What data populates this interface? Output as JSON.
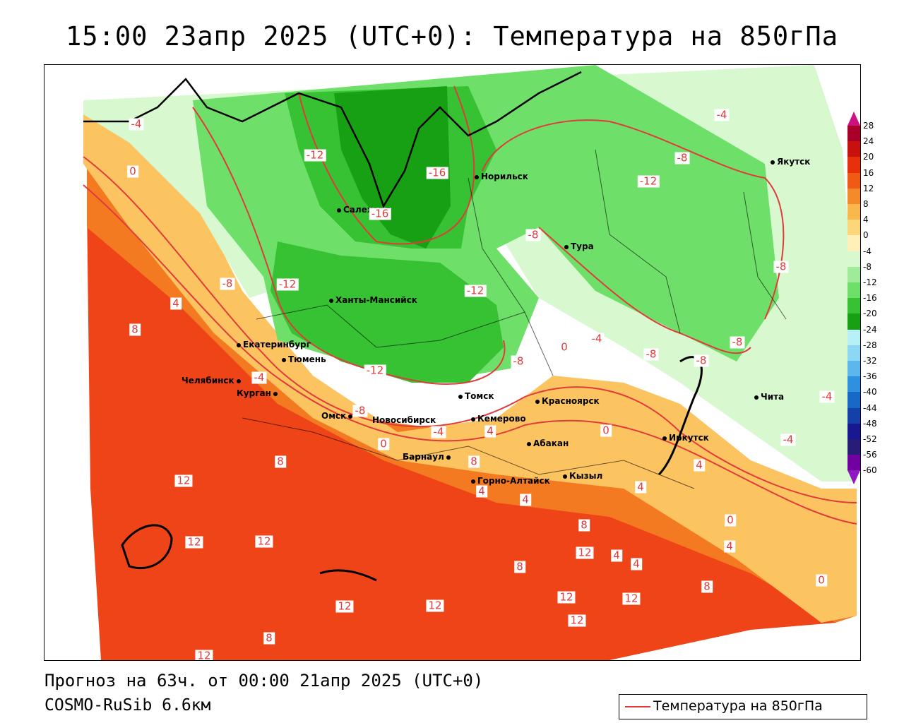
{
  "title": "15:00 23апр 2025 (UTC+0): Температура на 850гПа",
  "footer": {
    "forecast": "Прогноз на 63ч. от 00:00 21апр 2025 (UTC+0)",
    "model": "COSMO-RuSib 6.6км"
  },
  "legend": {
    "label": "Температура на 850гПа",
    "color": "#e23a3a"
  },
  "cities": [
    {
      "id": "salekhard",
      "name": "Салехард"
    },
    {
      "id": "norilsk",
      "name": "Норильск"
    },
    {
      "id": "yakutsk",
      "name": "Якутск"
    },
    {
      "id": "tura",
      "name": "Тура"
    },
    {
      "id": "khanty",
      "name": "Ханты-Мансийск"
    },
    {
      "id": "ekb",
      "name": "Екатеринбург"
    },
    {
      "id": "tyumen",
      "name": "Тюмень"
    },
    {
      "id": "chelyabinsk",
      "name": "Челябинск"
    },
    {
      "id": "kurgan",
      "name": "Курган"
    },
    {
      "id": "omsk",
      "name": "Омск"
    },
    {
      "id": "novosibirsk",
      "name": "Новосибирск"
    },
    {
      "id": "tomsk",
      "name": "Томск"
    },
    {
      "id": "kemerovo",
      "name": "Кемерово"
    },
    {
      "id": "krasnoyarsk",
      "name": "Красноярск"
    },
    {
      "id": "barnaul",
      "name": "Барнаул"
    },
    {
      "id": "abakan",
      "name": "Абакан"
    },
    {
      "id": "gorno",
      "name": "Горно-Алтайск"
    },
    {
      "id": "kyzyl",
      "name": "Кызыл"
    },
    {
      "id": "irkutsk",
      "name": "Иркутск"
    },
    {
      "id": "chita",
      "name": "Чита"
    }
  ],
  "isotherm_labels": [
    "-4",
    "0",
    "-12",
    "-16",
    "-16",
    "-8",
    "-12",
    "-8",
    "-8",
    "-4",
    "-8",
    "-12",
    "-12",
    "-8",
    "-12",
    "-4",
    "-8",
    "-4",
    "0",
    "-4",
    "-8",
    "-8",
    "-8",
    "-4",
    "-4",
    "4",
    "8",
    "4",
    "0",
    "0",
    "4",
    "8",
    "4",
    "4",
    "12",
    "8",
    "12",
    "8",
    "12",
    "8",
    "12",
    "12",
    "4",
    "4",
    "0",
    "4",
    "8",
    "12",
    "12",
    "12",
    "12",
    "8",
    "12",
    "4",
    "0"
  ],
  "colorbar": {
    "ticks": [
      "28",
      "24",
      "20",
      "16",
      "12",
      "8",
      "4",
      "0",
      "-4",
      "-8",
      "-12",
      "-16",
      "-20",
      "-24",
      "-28",
      "-32",
      "-36",
      "-40",
      "-44",
      "-48",
      "-52",
      "-56",
      "-60"
    ],
    "colors": [
      "#cf1080",
      "#a8002a",
      "#c8100c",
      "#e8300a",
      "#f05a14",
      "#f48a28",
      "#f8b84c",
      "#fcd678",
      "#fef0b8",
      "#d8f8d0",
      "#9eec9a",
      "#6ee06a",
      "#36c232",
      "#18a014",
      "#b8f0f8",
      "#8cd8f4",
      "#5cb8ec",
      "#3090e0",
      "#1868c8",
      "#1440a8",
      "#181890",
      "#281c78",
      "#7000a0",
      "#9018c0"
    ]
  }
}
